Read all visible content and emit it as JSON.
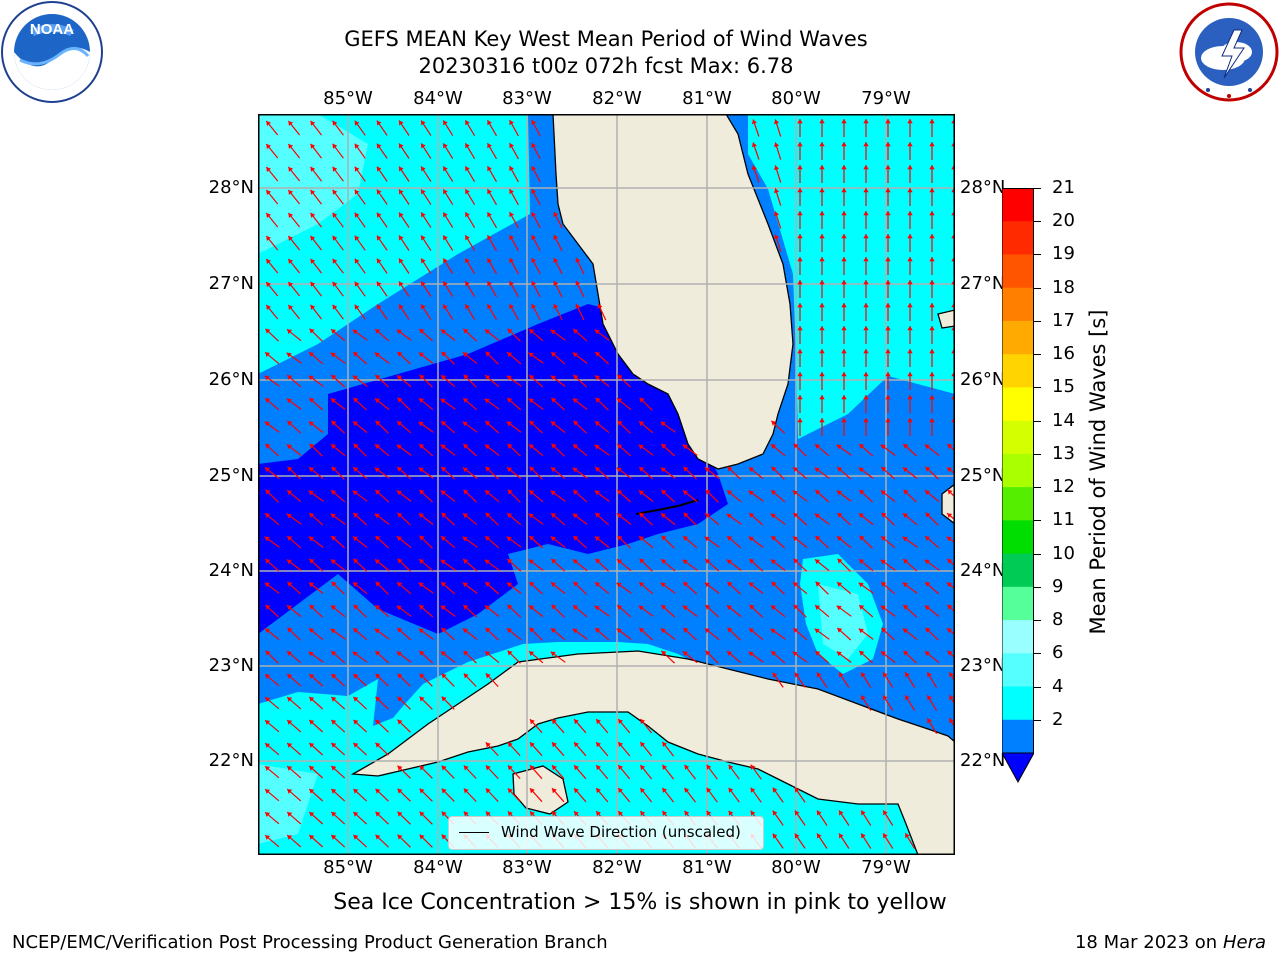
{
  "title": {
    "line1": "GEFS MEAN Key West Mean Period of Wind Waves",
    "line2": "20230316 t00z 072h fcst   Max: 6.78"
  },
  "logos": {
    "left": "NOAA",
    "right": "NATIONAL WEATHER SERVICE"
  },
  "map": {
    "lon_ticks": [
      "85°W",
      "84°W",
      "83°W",
      "82°W",
      "81°W",
      "80°W",
      "79°W"
    ],
    "lat_ticks": [
      "28°N",
      "27°N",
      "26°N",
      "25°N",
      "24°N",
      "23°N",
      "22°N"
    ],
    "land_color": "#efecdc",
    "arrow_color": "#ff0000",
    "grid": true
  },
  "colorbar": {
    "label": "Mean Period of Wind Waves [s]",
    "ticks": [
      "21",
      "20",
      "19",
      "18",
      "17",
      "16",
      "15",
      "14",
      "13",
      "12",
      "11",
      "10",
      "9",
      "8",
      "6",
      "4",
      "2"
    ],
    "colors": [
      "#ff0000",
      "#ff2a00",
      "#ff5500",
      "#ff7f00",
      "#ffaa00",
      "#ffd400",
      "#ffff00",
      "#d4ff00",
      "#aaff00",
      "#55ee00",
      "#00dd00",
      "#00cc55",
      "#55ff99",
      "#99ffff",
      "#55ffff",
      "#00ffff",
      "#0080ff",
      "#0000ff"
    ]
  },
  "legend": {
    "label": "Wind Wave Direction (unscaled)"
  },
  "note": "Sea Ice Concentration > 15% is shown in pink to yellow",
  "footer": {
    "left": "NCEP/EMC/Verification Post Processing Product Generation Branch",
    "date": "18 Mar 2023 on",
    "host": "Hera"
  }
}
